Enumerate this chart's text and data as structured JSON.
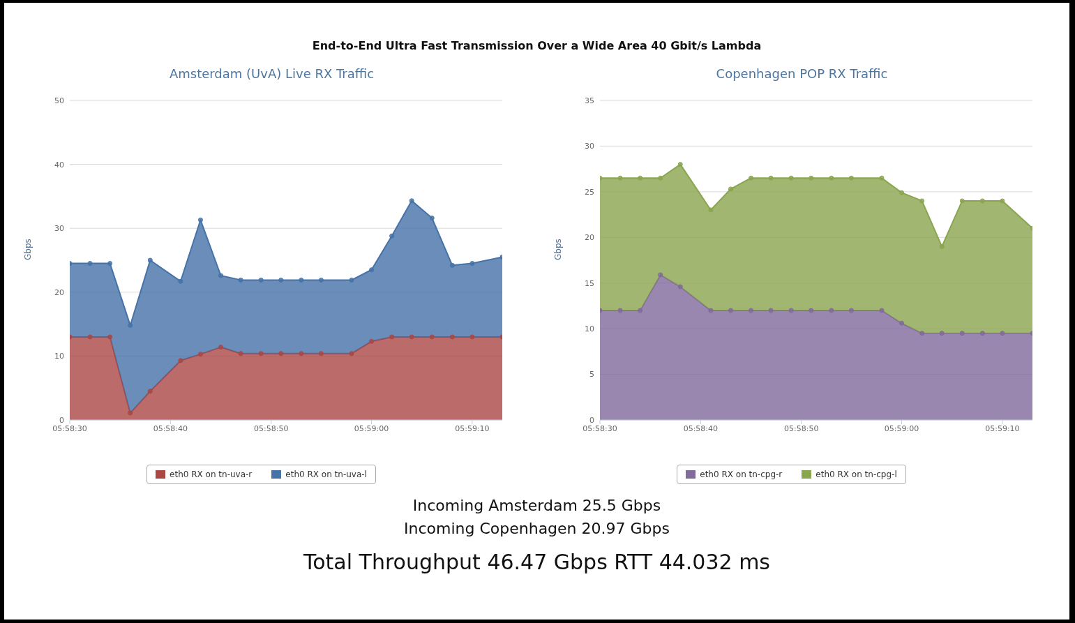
{
  "chart_data": [
    {
      "type": "area",
      "subtitle": "End-to-End Ultra Fast Transmission Over a Wide Area 40 Gbit/s Lambda",
      "title": "Amsterdam (UvA) Live RX Traffic",
      "ylabel": "Gbps",
      "stacked": true,
      "grid": "y",
      "legend": "bottom",
      "marker": "circle",
      "x": [
        5.975,
        5.97556,
        5.97611,
        5.97667,
        5.97722,
        5.97806,
        5.97861,
        5.97917,
        5.97972,
        5.98028,
        5.98083,
        5.98139,
        5.98194,
        5.98278,
        5.98333,
        5.98389,
        5.98444,
        5.985,
        5.98556,
        5.98611,
        5.98694
      ],
      "xlim": [
        5.975,
        5.98694
      ],
      "xticks": [
        {
          "value": 5.975,
          "label": "05:58:30"
        },
        {
          "value": 5.97778,
          "label": "05:58:40"
        },
        {
          "value": 5.98056,
          "label": "05:58:50"
        },
        {
          "value": 5.98333,
          "label": "05:59:00"
        },
        {
          "value": 5.98611,
          "label": "05:59:10"
        }
      ],
      "ylim": [
        0,
        50
      ],
      "yticks": [
        0,
        10,
        20,
        30,
        40,
        50
      ],
      "series": [
        {
          "name": "eth0 RX on tn-uva-r",
          "color": "#aa4643",
          "values": [
            13,
            13,
            13,
            1.1,
            4.5,
            9.3,
            10.3,
            11.4,
            10.4,
            10.4,
            10.4,
            10.4,
            10.4,
            10.4,
            12.3,
            13,
            13,
            13,
            13,
            13,
            13
          ]
        },
        {
          "name": "eth0 RX on tn-uva-l",
          "color": "#4572a7",
          "values": [
            11.5,
            11.5,
            11.5,
            13.7,
            20.5,
            12.4,
            21.0,
            11.2,
            11.5,
            11.5,
            11.5,
            11.5,
            11.5,
            11.5,
            11.2,
            15.8,
            21.3,
            18.6,
            11.2,
            11.5,
            12.5
          ]
        }
      ],
      "annotations": [
        "Incoming Amsterdam 25.5 Gbps",
        "Incoming Copenhagen 20.97 Gbps",
        "Total Throughput 46.47 Gbps RTT 44.032 ms"
      ]
    },
    {
      "type": "area",
      "title": "Copenhagen POP RX Traffic",
      "ylabel": "Gbps",
      "stacked": true,
      "grid": "y",
      "legend": "bottom",
      "marker": "circle",
      "x": [
        5.975,
        5.97556,
        5.97611,
        5.97667,
        5.97722,
        5.97806,
        5.97861,
        5.97917,
        5.97972,
        5.98028,
        5.98083,
        5.98139,
        5.98194,
        5.98278,
        5.98333,
        5.98389,
        5.98444,
        5.985,
        5.98556,
        5.98611,
        5.98694
      ],
      "xlim": [
        5.975,
        5.98694
      ],
      "xticks": [
        {
          "value": 5.975,
          "label": "05:58:30"
        },
        {
          "value": 5.97778,
          "label": "05:58:40"
        },
        {
          "value": 5.98056,
          "label": "05:58:50"
        },
        {
          "value": 5.98333,
          "label": "05:59:00"
        },
        {
          "value": 5.98611,
          "label": "05:59:10"
        }
      ],
      "ylim": [
        0,
        35
      ],
      "yticks": [
        0,
        5,
        10,
        15,
        20,
        25,
        30,
        35
      ],
      "series": [
        {
          "name": "eth0 RX on tn-cpg-r",
          "color": "#80699b",
          "values": [
            12,
            12,
            12,
            15.9,
            14.6,
            12,
            12,
            12,
            12,
            12,
            12,
            12,
            12,
            12,
            10.6,
            9.5,
            9.5,
            9.5,
            9.5,
            9.5,
            9.5
          ]
        },
        {
          "name": "eth0 RX on tn-cpg-l",
          "color": "#89a54e",
          "values": [
            14.5,
            14.5,
            14.5,
            10.6,
            13.4,
            11.0,
            13.3,
            14.5,
            14.5,
            14.5,
            14.5,
            14.5,
            14.5,
            14.5,
            14.3,
            14.5,
            9.5,
            14.5,
            14.5,
            14.5,
            11.5
          ]
        }
      ]
    }
  ]
}
